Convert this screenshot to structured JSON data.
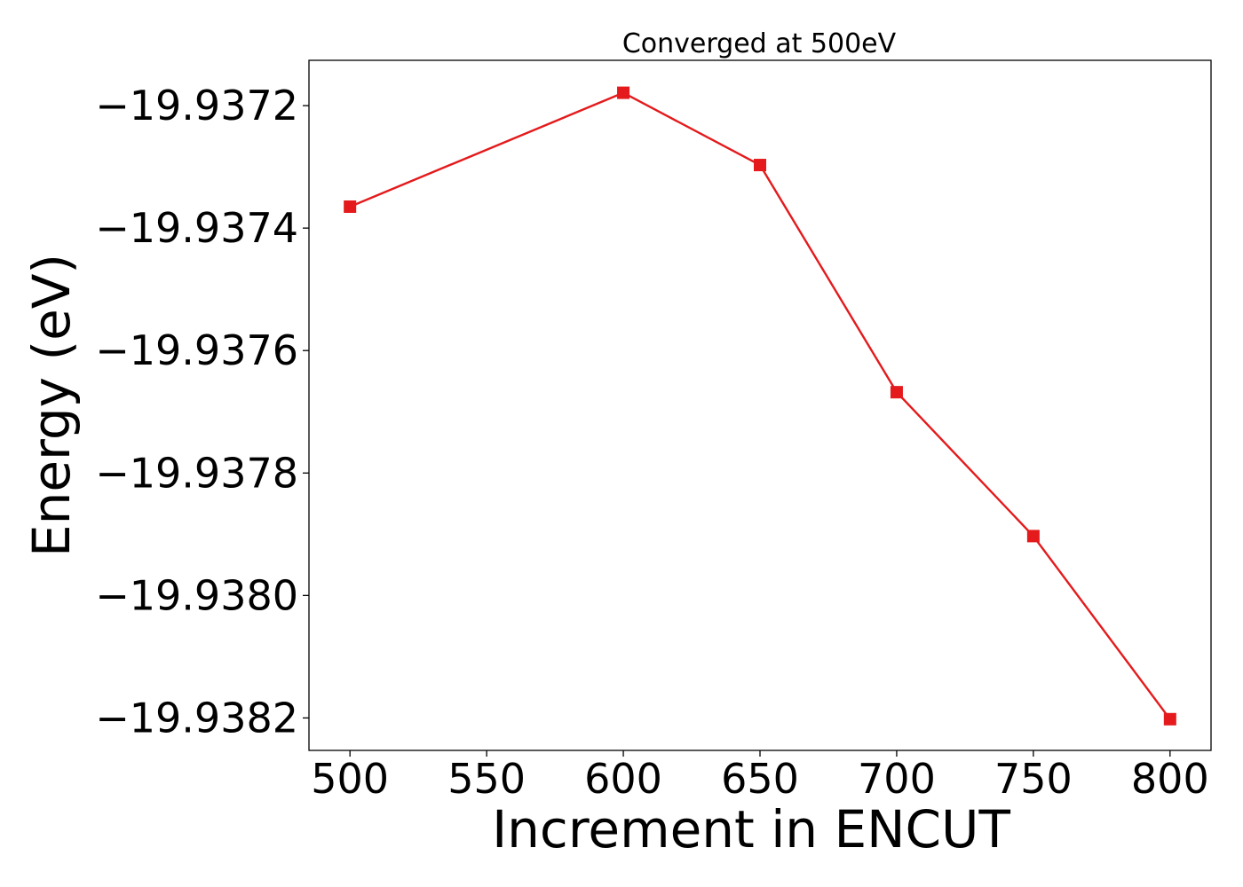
{
  "chart_data": {
    "type": "line",
    "title": "Converged at 500eV",
    "xlabel": "Increment in ENCUT",
    "ylabel": "Energy (eV)",
    "x": [
      500,
      600,
      650,
      700,
      750,
      800
    ],
    "series": [
      {
        "values": [
          -19.937365,
          -19.937179,
          -19.937297,
          -19.937668,
          -19.937903,
          -19.938202
        ],
        "color": "#e41a1c",
        "marker": "square"
      }
    ],
    "xlim": [
      485,
      815
    ],
    "ylim": [
      -19.938253,
      -19.937126
    ],
    "xticks": [
      500,
      550,
      600,
      650,
      700,
      750,
      800
    ],
    "xtick_labels": [
      "500",
      "550",
      "600",
      "650",
      "700",
      "750",
      "800"
    ],
    "yticks": [
      -19.9372,
      -19.9374,
      -19.9376,
      -19.9378,
      -19.938,
      -19.9382
    ],
    "ytick_labels": [
      "−19.9372",
      "−19.9374",
      "−19.9376",
      "−19.9378",
      "−19.9380",
      "−19.9382"
    ],
    "grid": false,
    "legend": "none"
  }
}
